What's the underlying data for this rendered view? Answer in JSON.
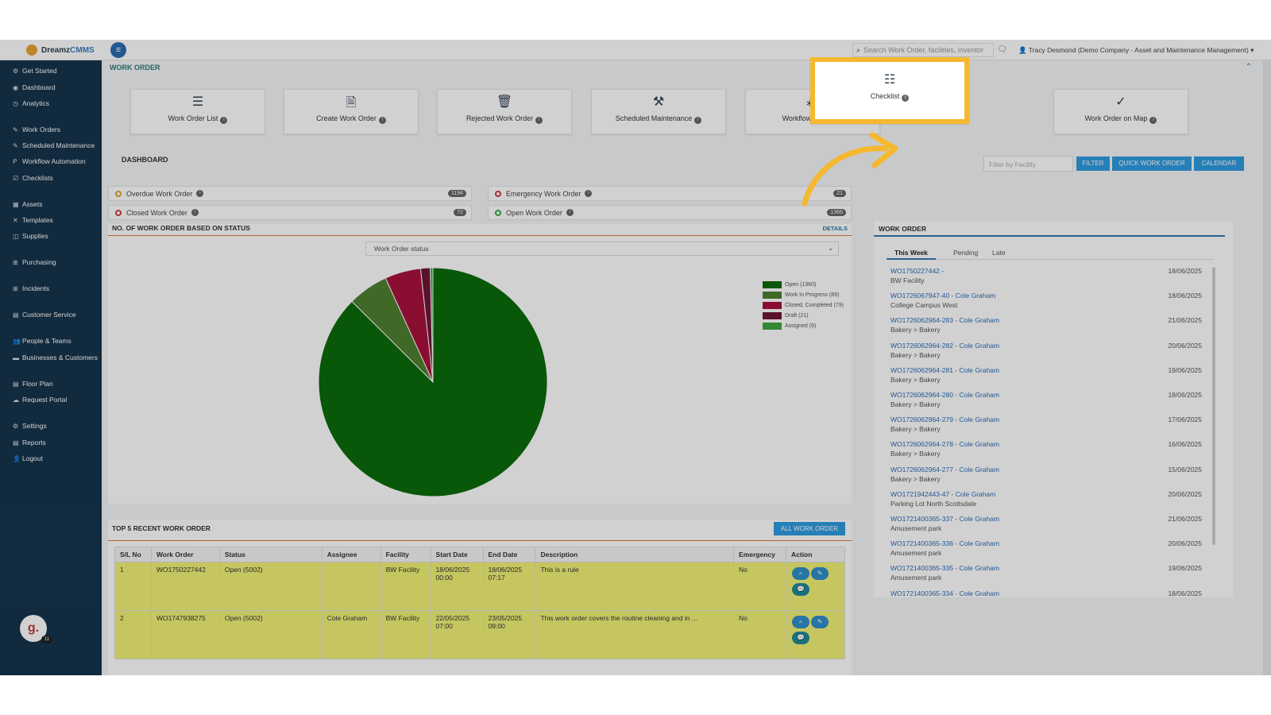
{
  "brand": {
    "name_a": "Dreamz",
    "name_b": "CMMS"
  },
  "topbar": {
    "search_placeholder": "Search Work Order, facilities, inventor",
    "user": "Tracy Desmond (Demo Company - Asset and Maintenance Management)"
  },
  "sidebar": {
    "items": [
      "Get Started",
      "Dashboard",
      "Analytics",
      "Work Orders",
      "Scheduled Maintenance",
      "Workflow Automation",
      "Checklists",
      "Assets",
      "Templates",
      "Supplies",
      "Purchasing",
      "Incidents",
      "Customer Service",
      "People & Teams",
      "Businesses & Customers",
      "Floor Plan",
      "Request Portal",
      "Settings",
      "Reports",
      "Logout"
    ],
    "avatar": "g.",
    "avatar_badge": "11"
  },
  "header": {
    "title": "WORK ORDER"
  },
  "tiles": [
    "Work Order List",
    "Create Work Order",
    "Rejected Work Order",
    "Scheduled Maintenance",
    "Workflow Autom",
    "Checklist",
    "Work Order on Map"
  ],
  "dashboard": {
    "title": "DASHBOARD",
    "filter_placeholder": "Filter by Facility",
    "buttons": [
      "FILTER",
      "QUICK WORK ORDER",
      "CALENDAR"
    ]
  },
  "stats": [
    {
      "label": "Overdue Work Order",
      "count": "1194",
      "color": "#e0a23a"
    },
    {
      "label": "Emergency Work Order",
      "count": "21",
      "color": "#d03b3b"
    },
    {
      "label": "Closed Work Order",
      "count": "72",
      "color": "#d03b3b"
    },
    {
      "label": "Open Work Order",
      "count": "1366",
      "color": "#3aa94a"
    }
  ],
  "status_panel": {
    "title": "NO. OF WORK ORDER BASED ON STATUS",
    "details": "DETAILS",
    "select_value": "Work Order status"
  },
  "chart_data": {
    "type": "pie",
    "categories": [
      "Open",
      "Work In Progress",
      "Closed, Completed",
      "Draft",
      "Assigned"
    ],
    "values": [
      1360,
      89,
      79,
      21,
      6
    ],
    "legend": [
      "Open (1360)",
      "Work In Progress (89)",
      "Closed, Completed (79)",
      "Draft (21)",
      "Assigned (6)"
    ],
    "colors": [
      "#0b6b0b",
      "#4f7f2f",
      "#a8123c",
      "#6e1636",
      "#41a541"
    ]
  },
  "recent": {
    "title": "TOP 5 RECENT WORK ORDER",
    "button": "ALL WORK ORDER",
    "columns": [
      "S/L No",
      "Work Order",
      "Status",
      "Assignee",
      "Facility",
      "Start Date",
      "End Date",
      "Description",
      "Emergency",
      "Action"
    ],
    "rows": [
      [
        "1",
        "WO1750227442",
        "Open (5002)",
        "",
        "BW Facility",
        "18/06/2025 00:00",
        "18/06/2025 07:17",
        "This is a rule",
        "No"
      ],
      [
        "2",
        "WO1747938275",
        "Open (5002)",
        "Cole Graham",
        "BW Facility",
        "22/05/2025 07:00",
        "23/05/2025 09:00",
        "This work order covers the routine cleaning and in ...",
        "No"
      ]
    ]
  },
  "wo_panel": {
    "title": "WORK ORDER",
    "tabs": [
      "This Week",
      "Pending",
      "Late"
    ],
    "items": [
      [
        "WO1750227442 -",
        "BW Facility",
        "18/06/2025"
      ],
      [
        "WO1726067947-40 - Cole Graham",
        "College Campus West",
        "18/06/2025"
      ],
      [
        "WO1726062964-283 - Cole Graham",
        "Bakery > Bakery",
        "21/06/2025"
      ],
      [
        "WO1726062964-282 - Cole Graham",
        "Bakery > Bakery",
        "20/06/2025"
      ],
      [
        "WO1726062964-281 - Cole Graham",
        "Bakery > Bakery",
        "19/06/2025"
      ],
      [
        "WO1726062964-280 - Cole Graham",
        "Bakery > Bakery",
        "18/06/2025"
      ],
      [
        "WO1726062964-279 - Cole Graham",
        "Bakery > Bakery",
        "17/06/2025"
      ],
      [
        "WO1726062964-278 - Cole Graham",
        "Bakery > Bakery",
        "16/06/2025"
      ],
      [
        "WO1726062964-277 - Cole Graham",
        "Bakery > Bakery",
        "15/06/2025"
      ],
      [
        "WO1721942443-47 - Cole Graham",
        "Parking Lot North Scottsdale",
        "20/06/2025"
      ],
      [
        "WO1721400365-337 - Cole Graham",
        "Amusement park",
        "21/06/2025"
      ],
      [
        "WO1721400365-336 - Cole Graham",
        "Amusement park",
        "20/06/2025"
      ],
      [
        "WO1721400365-335 - Cole Graham",
        "Amusement park",
        "19/06/2025"
      ],
      [
        "WO1721400365-334 - Cole Graham",
        "",
        "18/06/2025"
      ]
    ]
  }
}
